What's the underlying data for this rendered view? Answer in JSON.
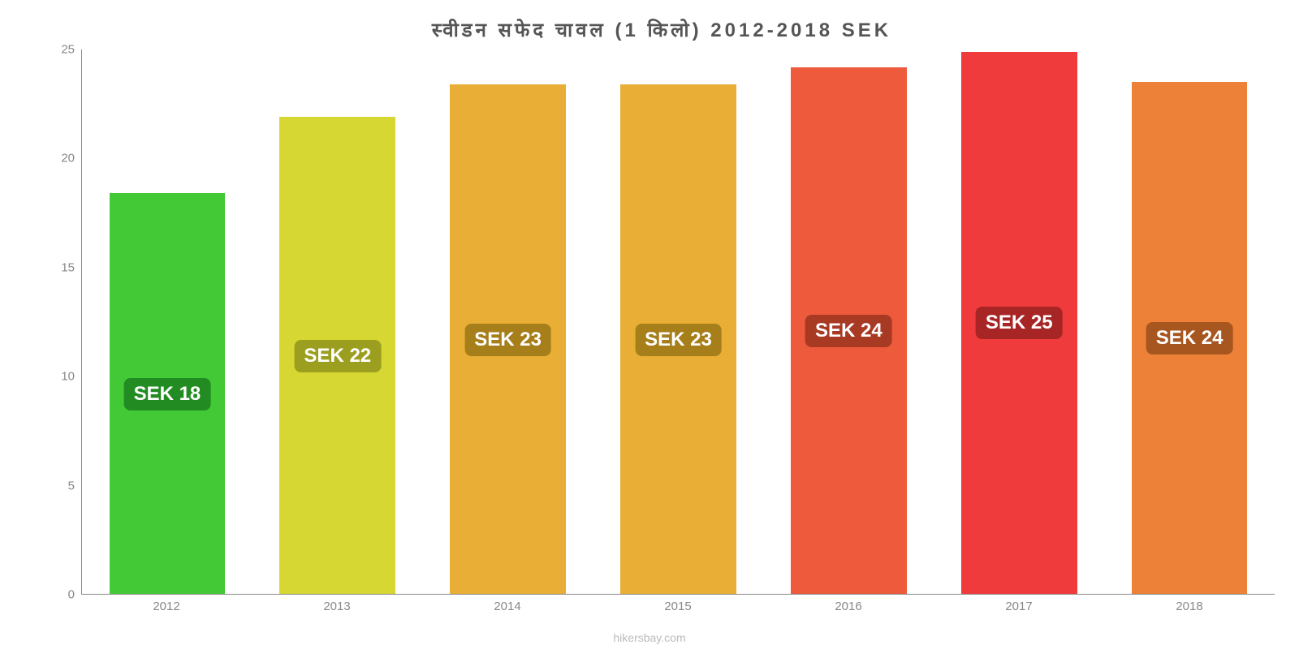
{
  "chart": {
    "type": "bar",
    "title": "स्वीडन  सफेद  चावल  (1 किलो) 2012-2018 SEK",
    "title_fontsize": 24,
    "title_color": "#555555",
    "background_color": "#ffffff",
    "ymin": 0,
    "ymax": 25,
    "ytick_step": 5,
    "yticks": [
      0,
      5,
      10,
      15,
      20,
      25
    ],
    "axis_color": "#888888",
    "axis_fontsize": 15,
    "bar_width_ratio": 0.68,
    "attribution": "hikersbay.com",
    "attribution_color": "#bbbbbb",
    "attribution_fontsize": 14,
    "label_fontsize": 24,
    "label_text_color": "#ffffff",
    "bars": [
      {
        "category": "2012",
        "value": 18.4,
        "label": "SEK 18",
        "fill": "#43c935",
        "label_bg": "#228b22"
      },
      {
        "category": "2013",
        "value": 21.9,
        "label": "SEK 22",
        "fill": "#d6d732",
        "label_bg": "#9b9e1e"
      },
      {
        "category": "2014",
        "value": 23.4,
        "label": "SEK 23",
        "fill": "#e8ae35",
        "label_bg": "#a67e1a"
      },
      {
        "category": "2015",
        "value": 23.4,
        "label": "SEK 23",
        "fill": "#e8ae35",
        "label_bg": "#a67e1a"
      },
      {
        "category": "2016",
        "value": 24.2,
        "label": "SEK 24",
        "fill": "#ee5a3c",
        "label_bg": "#a83a24"
      },
      {
        "category": "2017",
        "value": 24.9,
        "label": "SEK 25",
        "fill": "#ef3b3b",
        "label_bg": "#a72525"
      },
      {
        "category": "2018",
        "value": 23.5,
        "label": "SEK 24",
        "fill": "#ec8137",
        "label_bg": "#a7561f"
      }
    ]
  }
}
